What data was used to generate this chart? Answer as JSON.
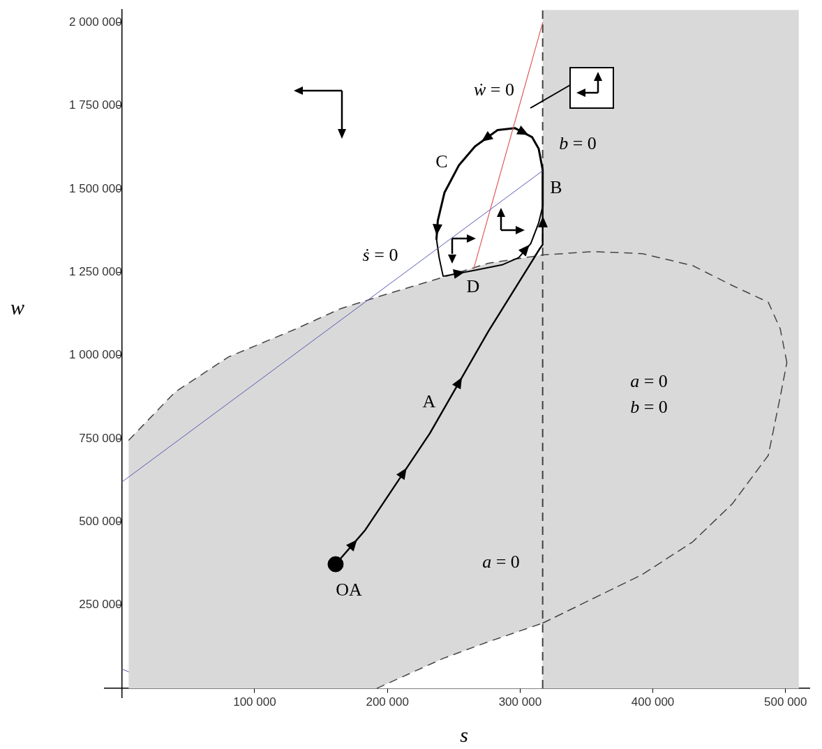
{
  "chart_data": {
    "type": "line",
    "xlabel": "s",
    "ylabel": "w",
    "xlim": [
      -13000,
      518000
    ],
    "ylim": [
      -27000,
      2038000
    ],
    "xticks": [
      {
        "value": 100000,
        "label": "100 000"
      },
      {
        "value": 200000,
        "label": "200 000"
      },
      {
        "value": 300000,
        "label": "300 000"
      },
      {
        "value": 400000,
        "label": "400 000"
      },
      {
        "value": 500000,
        "label": "500 000"
      }
    ],
    "yticks": [
      {
        "value": 250000,
        "label": "250 000"
      },
      {
        "value": 500000,
        "label": "500 000"
      },
      {
        "value": 750000,
        "label": "750 000"
      },
      {
        "value": 1000000,
        "label": "1 000 000"
      },
      {
        "value": 1250000,
        "label": "1 250 000"
      },
      {
        "value": 1500000,
        "label": "1 500 000"
      },
      {
        "value": 1750000,
        "label": "1 750 000"
      },
      {
        "value": 2000000,
        "label": "2 000 000"
      }
    ],
    "marker": "none",
    "series": [
      {
        "type": "area",
        "color": "#d9d9d9",
        "line_style": "dashed",
        "x": [
          5000,
          40000,
          80000,
          130000,
          165000,
          200000,
          242000,
          276000,
          317000,
          355000,
          392000,
          430000,
          460000,
          487000,
          496000,
          501000
        ],
        "values": [
          745000,
          890000,
          995000,
          1078000,
          1141000,
          1185000,
          1235000,
          1277000,
          1302000,
          1312000,
          1306000,
          1270000,
          1210000,
          1160000,
          1080000,
          979000
        ]
      },
      {
        "type": "area",
        "color": "#ffffff",
        "line_style": "dashed",
        "x": [
          192000,
          242000,
          276000,
          317000
        ],
        "values": [
          0,
          90000,
          140000,
          196000
        ]
      },
      {
        "type": "line",
        "color": "#444444",
        "line_style": "dashed",
        "x": [
          317000,
          355000,
          392000,
          430000,
          460000,
          487000,
          496000,
          501000
        ],
        "values": [
          196000,
          270000,
          342000,
          440000,
          555000,
          700000,
          876000,
          979000
        ]
      },
      {
        "type": "line",
        "color": "#5a5ab4",
        "x": [
          0,
          317000
        ],
        "values": [
          620000,
          1555000
        ]
      },
      {
        "type": "line",
        "color": "#5a5ab4",
        "x": [
          0,
          5000
        ],
        "values": [
          58000,
          50000
        ]
      },
      {
        "type": "line",
        "color": "#e05a5a",
        "x": [
          265000,
          317000
        ],
        "values": [
          1260000,
          2000000
        ]
      },
      {
        "type": "line",
        "color": "#000000",
        "x": [
          161000,
          183000,
          232000,
          276000,
          315000,
          317000,
          317000
        ],
        "values": [
          373000,
          474000,
          766000,
          1072000,
          1322000,
          1333000,
          1447000
        ]
      },
      {
        "type": "line",
        "color": "#000000",
        "x": [
          317000,
          317000,
          314000,
          309000,
          296000,
          283000,
          266000,
          254000,
          243000,
          238000,
          237000
        ],
        "values": [
          1447000,
          1558000,
          1621000,
          1656000,
          1683000,
          1677000,
          1628000,
          1572000,
          1489000,
          1405000,
          1350000
        ]
      },
      {
        "type": "line",
        "color": "#000000",
        "x": [
          237000,
          239000,
          242000,
          266000,
          287000,
          299000,
          308000,
          314000,
          317000
        ],
        "values": [
          1350000,
          1294000,
          1238000,
          1256000,
          1273000,
          1294000,
          1336000,
          1398000,
          1447000
        ]
      },
      {
        "type": "scatter",
        "color": "#000000",
        "marker": "circle",
        "x": [
          161000
        ],
        "values": [
          373000
        ]
      }
    ],
    "ref_lines": [
      {
        "axis": "x",
        "value": 317000,
        "color": "#404040",
        "line_style": "dashed"
      }
    ],
    "bands": [
      {
        "axis": "x",
        "from": 317000,
        "to": 510000,
        "color": "#d9d9d9"
      }
    ],
    "annotations": [
      "ẇ = 0",
      "b = 0",
      "C",
      "B",
      "ṡ = 0",
      "D",
      "A",
      "OA",
      "a = 0",
      "b = 0",
      "a = 0"
    ]
  }
}
